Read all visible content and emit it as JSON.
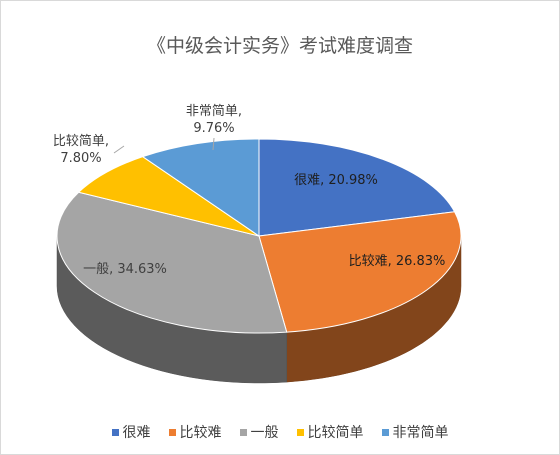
{
  "chart_data": {
    "type": "pie",
    "title": "《中级会计实务》考试难度调查",
    "categories": [
      "很难",
      "比较难",
      "一般",
      "比较简单",
      "非常简单"
    ],
    "values": [
      20.98,
      26.83,
      34.63,
      7.8,
      9.76
    ],
    "colors": [
      "#4472C4",
      "#ED7D31",
      "#A5A5A5",
      "#FFC000",
      "#5B9BD5"
    ],
    "data_labels": [
      "很难, 20.98%",
      "比较难, 26.83%",
      "一般, 34.63%",
      "比较简单,\n7.80%",
      "非常简单,\n9.76%"
    ],
    "legend": [
      "很难",
      "比较难",
      "一般",
      "比较简单",
      "非常简单"
    ],
    "legend_position": "bottom",
    "style": "3d"
  }
}
